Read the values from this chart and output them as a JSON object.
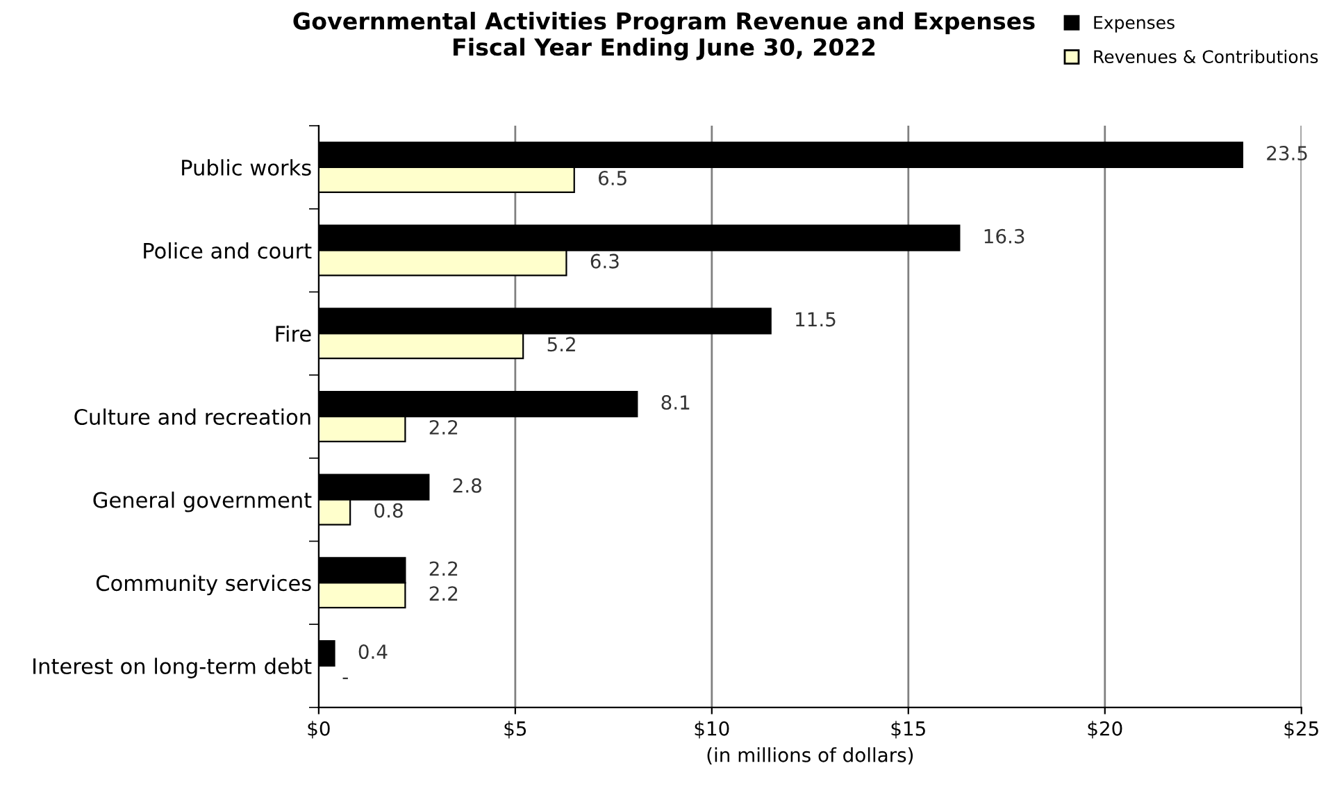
{
  "chart_data": {
    "type": "bar",
    "orientation": "horizontal",
    "title": "Governmental Activities Program Revenue and Expenses\nFiscal Year Ending June 30, 2022",
    "xlabel": "(in millions of dollars)",
    "categories": [
      "Public works",
      "Police and court",
      "Fire",
      "Culture and recreation",
      "General government",
      "Community services",
      "Interest on long-term debt"
    ],
    "series": [
      {
        "name": "Expenses",
        "color": "#000000",
        "values": [
          23.5,
          16.3,
          11.5,
          8.1,
          2.8,
          2.2,
          0.4
        ],
        "value_labels": [
          "23.5",
          "16.3",
          "11.5",
          "8.1",
          "2.8",
          "2.2",
          "0.4"
        ]
      },
      {
        "name": "Revenues & Contributions",
        "color": "#ffffcc",
        "values": [
          6.5,
          6.3,
          5.2,
          2.2,
          0.8,
          2.2,
          0
        ],
        "value_labels": [
          "6.5",
          "6.3",
          "5.2",
          "2.2",
          "0.8",
          "2.2",
          "-"
        ]
      }
    ],
    "xlim": [
      0,
      25
    ],
    "xticks": [
      {
        "value": 0,
        "label": "$0"
      },
      {
        "value": 5,
        "label": "$5"
      },
      {
        "value": 10,
        "label": "$10"
      },
      {
        "value": 15,
        "label": "$15"
      },
      {
        "value": 20,
        "label": "$20"
      },
      {
        "value": 25,
        "label": "$25"
      }
    ],
    "grid": "x",
    "legend": "top right"
  }
}
